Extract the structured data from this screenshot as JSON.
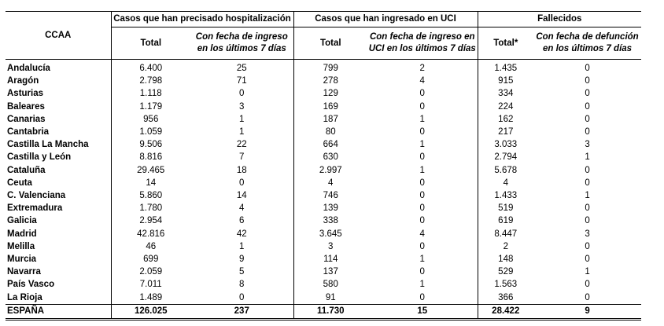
{
  "headers": {
    "ccaa": "CCAA",
    "groups": [
      "Casos que han precisado hospitalización",
      "Casos que han ingresado en UCI",
      "Fallecidos"
    ],
    "hosp_total": "Total",
    "hosp_7d_line1": "Con fecha de ingreso",
    "hosp_7d_line2": "en  los últimos 7 días",
    "uci_total": "Total",
    "uci_7d_line1": "Con fecha de ingreso en",
    "uci_7d_line2": "UCI en  los últimos 7 días",
    "fall_total": "Total*",
    "fall_7d_line1": "Con fecha de defunción",
    "fall_7d_line2": "en  los últimos 7 días"
  },
  "rows": [
    {
      "name": "Andalucía",
      "hosp_total": "6.400",
      "hosp_7d": "25",
      "uci_total": "799",
      "uci_7d": "2",
      "fall_total": "1.435",
      "fall_7d": "0"
    },
    {
      "name": "Aragón",
      "hosp_total": "2.798",
      "hosp_7d": "71",
      "uci_total": "278",
      "uci_7d": "4",
      "fall_total": "915",
      "fall_7d": "0"
    },
    {
      "name": "Asturias",
      "hosp_total": "1.118",
      "hosp_7d": "0",
      "uci_total": "129",
      "uci_7d": "0",
      "fall_total": "334",
      "fall_7d": "0"
    },
    {
      "name": "Baleares",
      "hosp_total": "1.179",
      "hosp_7d": "3",
      "uci_total": "169",
      "uci_7d": "0",
      "fall_total": "224",
      "fall_7d": "0"
    },
    {
      "name": "Canarias",
      "hosp_total": "956",
      "hosp_7d": "1",
      "uci_total": "187",
      "uci_7d": "1",
      "fall_total": "162",
      "fall_7d": "0"
    },
    {
      "name": "Cantabria",
      "hosp_total": "1.059",
      "hosp_7d": "1",
      "uci_total": "80",
      "uci_7d": "0",
      "fall_total": "217",
      "fall_7d": "0"
    },
    {
      "name": "Castilla La Mancha",
      "hosp_total": "9.506",
      "hosp_7d": "22",
      "uci_total": "664",
      "uci_7d": "1",
      "fall_total": "3.033",
      "fall_7d": "3"
    },
    {
      "name": "Castilla y León",
      "hosp_total": "8.816",
      "hosp_7d": "7",
      "uci_total": "630",
      "uci_7d": "0",
      "fall_total": "2.794",
      "fall_7d": "1"
    },
    {
      "name": "Cataluña",
      "hosp_total": "29.465",
      "hosp_7d": "18",
      "uci_total": "2.997",
      "uci_7d": "1",
      "fall_total": "5.678",
      "fall_7d": "0"
    },
    {
      "name": "Ceuta",
      "hosp_total": "14",
      "hosp_7d": "0",
      "uci_total": "4",
      "uci_7d": "0",
      "fall_total": "4",
      "fall_7d": "0"
    },
    {
      "name": "C. Valenciana",
      "hosp_total": "5.860",
      "hosp_7d": "14",
      "uci_total": "746",
      "uci_7d": "0",
      "fall_total": "1.433",
      "fall_7d": "1"
    },
    {
      "name": "Extremadura",
      "hosp_total": "1.780",
      "hosp_7d": "4",
      "uci_total": "139",
      "uci_7d": "0",
      "fall_total": "519",
      "fall_7d": "0"
    },
    {
      "name": "Galicia",
      "hosp_total": "2.954",
      "hosp_7d": "6",
      "uci_total": "338",
      "uci_7d": "0",
      "fall_total": "619",
      "fall_7d": "0"
    },
    {
      "name": "Madrid",
      "hosp_total": "42.816",
      "hosp_7d": "42",
      "uci_total": "3.645",
      "uci_7d": "4",
      "fall_total": "8.447",
      "fall_7d": "3"
    },
    {
      "name": "Melilla",
      "hosp_total": "46",
      "hosp_7d": "1",
      "uci_total": "3",
      "uci_7d": "0",
      "fall_total": "2",
      "fall_7d": "0"
    },
    {
      "name": "Murcia",
      "hosp_total": "699",
      "hosp_7d": "9",
      "uci_total": "114",
      "uci_7d": "1",
      "fall_total": "148",
      "fall_7d": "0"
    },
    {
      "name": "Navarra",
      "hosp_total": "2.059",
      "hosp_7d": "5",
      "uci_total": "137",
      "uci_7d": "0",
      "fall_total": "529",
      "fall_7d": "1"
    },
    {
      "name": "País Vasco",
      "hosp_total": "7.011",
      "hosp_7d": "8",
      "uci_total": "580",
      "uci_7d": "1",
      "fall_total": "1.563",
      "fall_7d": "0"
    },
    {
      "name": "La Rioja",
      "hosp_total": "1.489",
      "hosp_7d": "0",
      "uci_total": "91",
      "uci_7d": "0",
      "fall_total": "366",
      "fall_7d": "0"
    }
  ],
  "total": {
    "name": "ESPAÑA",
    "hosp_total": "126.025",
    "hosp_7d": "237",
    "uci_total": "11.730",
    "uci_7d": "15",
    "fall_total": "28.422",
    "fall_7d": "9"
  }
}
